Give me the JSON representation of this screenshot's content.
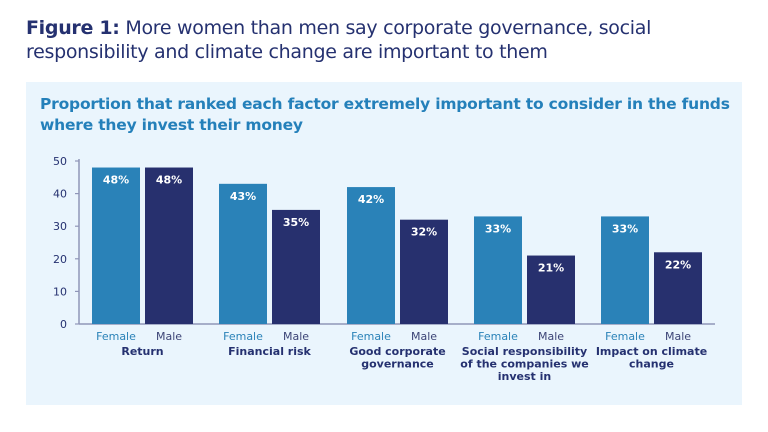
{
  "figure": {
    "label": "Figure 1:",
    "title": "More women than men say corporate governance, social responsibility and climate change are important to them"
  },
  "colors": {
    "female": "#2a82b8",
    "male": "#27306e",
    "panel_bg": "#eaf5fd",
    "axis": "#8f96b8"
  },
  "chart_data": {
    "type": "bar",
    "title": "Proportion that ranked each factor extremely important to consider in the funds where they invest their money",
    "categories": [
      [
        "Return"
      ],
      [
        "Financial risk"
      ],
      [
        "Good corporate",
        "governance"
      ],
      [
        "Social responsibility",
        "of the companies we",
        "invest in"
      ],
      [
        "Impact on climate",
        "change"
      ]
    ],
    "series": [
      {
        "name": "Female",
        "values": [
          48,
          43,
          42,
          33,
          33
        ],
        "labels": [
          "48%",
          "43%",
          "42%",
          "33%",
          "33%"
        ]
      },
      {
        "name": "Male",
        "values": [
          48,
          35,
          32,
          21,
          22
        ],
        "labels": [
          "48%",
          "35%",
          "32%",
          "21%",
          "22%"
        ]
      }
    ],
    "ylim": [
      0,
      50
    ],
    "yticks": [
      "0",
      "10",
      "20",
      "30",
      "40",
      "50"
    ],
    "grid": false
  }
}
